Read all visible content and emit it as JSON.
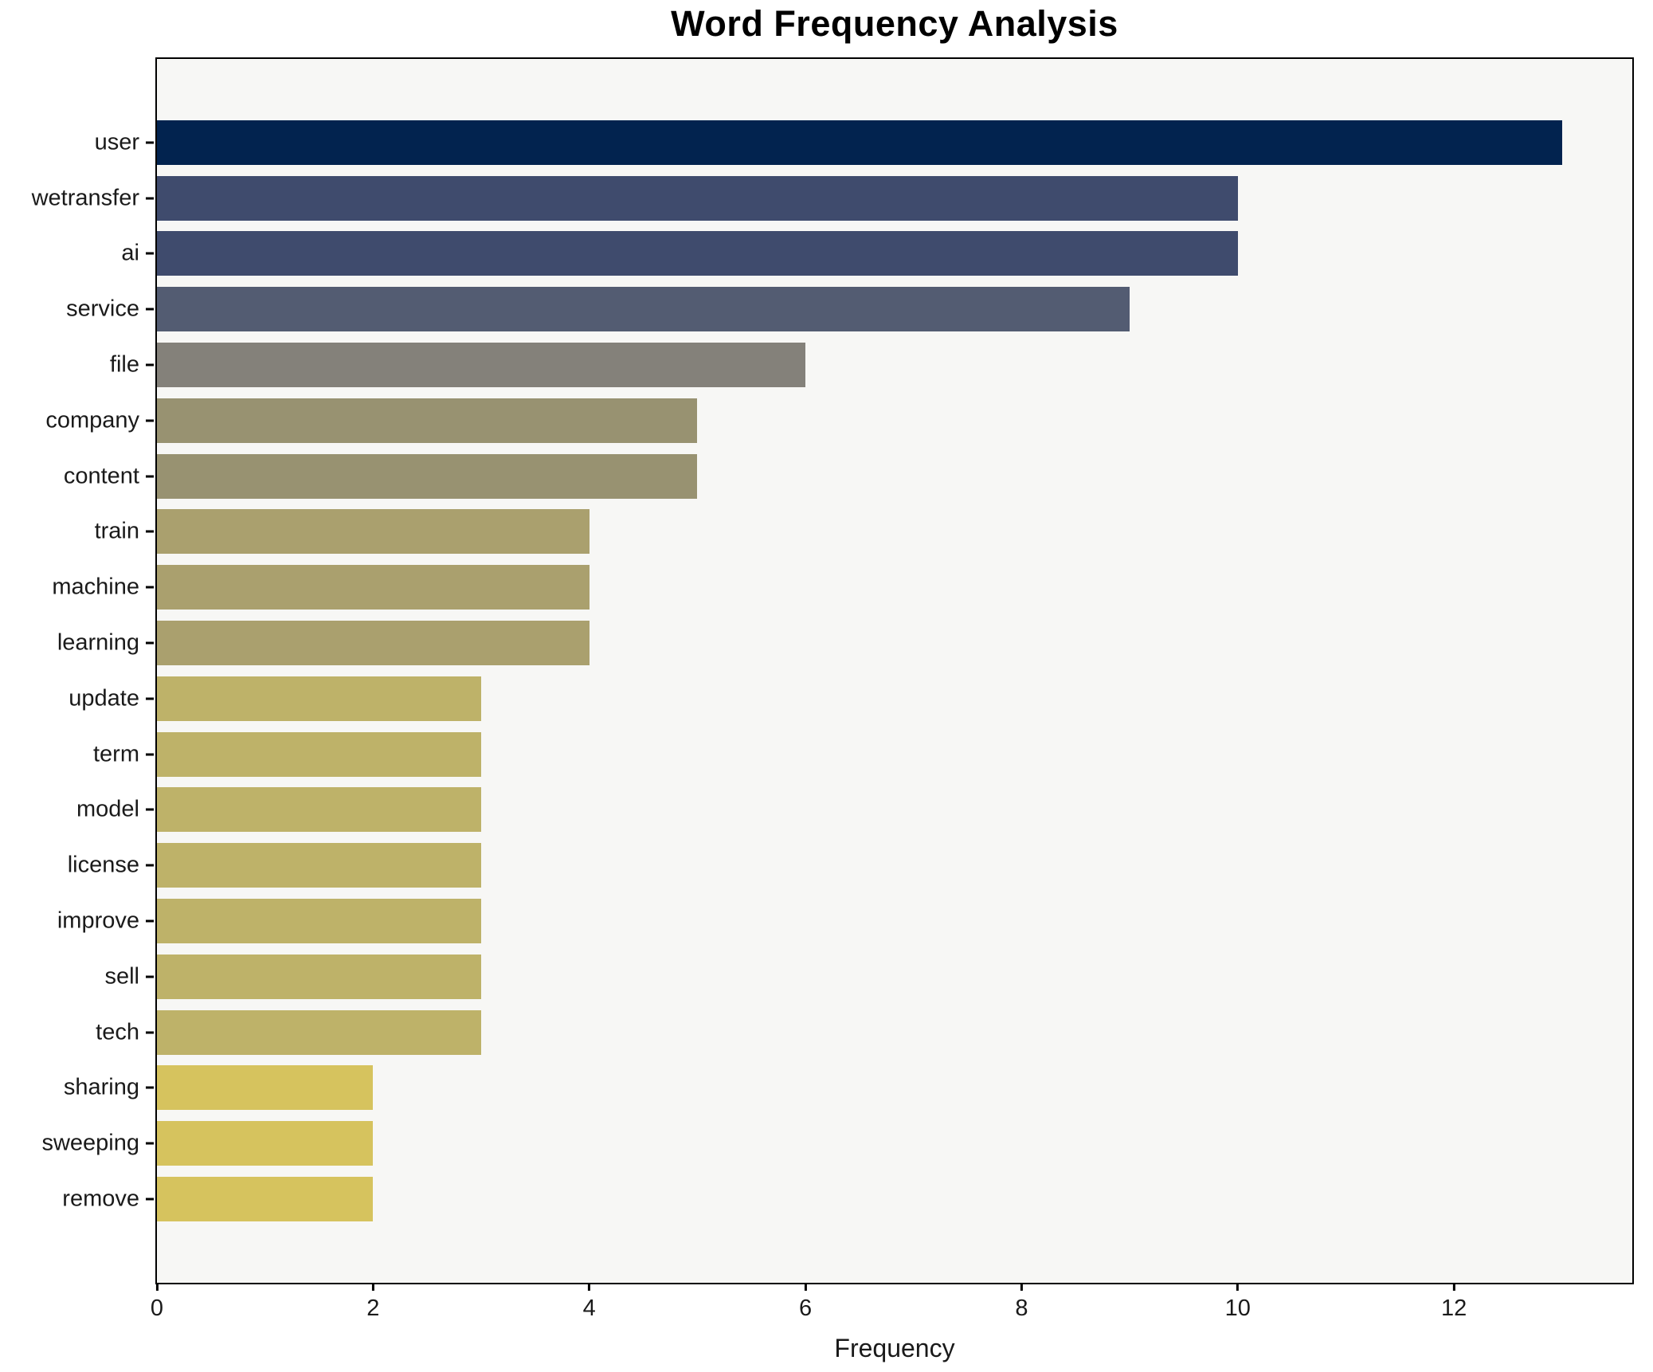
{
  "title": "Word Frequency Analysis",
  "xlabel": "Frequency",
  "colors": {
    "figure_bg": "#ffffff",
    "plot_bg": "#f7f7f5",
    "spine": "#000000",
    "text": "#1a1a1a",
    "value_13": "#02234f",
    "value_10": "#3f4b6d",
    "value_9": "#535c72",
    "value_6": "#84817a",
    "value_5": "#989271",
    "value_4": "#aaa06e",
    "value_3": "#beb269",
    "value_2": "#d6c35e"
  },
  "chart_data": {
    "type": "bar",
    "orientation": "horizontal",
    "title": "Word Frequency Analysis",
    "xlabel": "Frequency",
    "ylabel": "",
    "grid": false,
    "legend": false,
    "xlim": [
      0,
      13.65
    ],
    "x_ticks": [
      0,
      2,
      4,
      6,
      8,
      10,
      12
    ],
    "categories": [
      "user",
      "wetransfer",
      "ai",
      "service",
      "file",
      "company",
      "content",
      "train",
      "machine",
      "learning",
      "update",
      "term",
      "model",
      "license",
      "improve",
      "sell",
      "tech",
      "sharing",
      "sweeping",
      "remove"
    ],
    "values": [
      13,
      10,
      10,
      9,
      6,
      5,
      5,
      4,
      4,
      4,
      3,
      3,
      3,
      3,
      3,
      3,
      3,
      2,
      2,
      2
    ],
    "bar_colors": [
      "#02234f",
      "#3f4b6d",
      "#3f4b6d",
      "#535c72",
      "#84817a",
      "#989271",
      "#989271",
      "#aaa06e",
      "#aaa06e",
      "#aaa06e",
      "#beb269",
      "#beb269",
      "#beb269",
      "#beb269",
      "#beb269",
      "#beb269",
      "#beb269",
      "#d6c35e",
      "#d6c35e",
      "#d6c35e"
    ]
  }
}
